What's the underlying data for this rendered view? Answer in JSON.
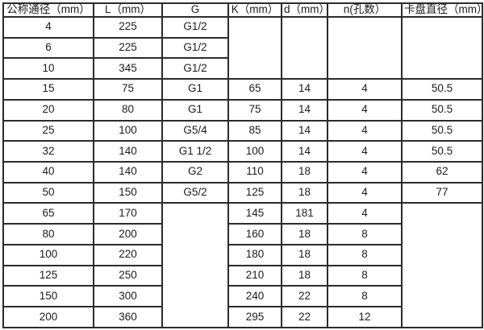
{
  "style": {
    "background_color": "#ffffff",
    "border_color": "#2b2b2b",
    "text_color": "#1c1c1c"
  },
  "table": {
    "headers": [
      "公称通径（mm）",
      "L（mm）",
      "G",
      "K（mm）",
      "d（mm）",
      "n(孔数）",
      "卡盘直径（mm）"
    ],
    "header_names": [
      "nominal-diameter",
      "length-l",
      "thread-g",
      "k-dimension",
      "d-dimension",
      "hole-count-n",
      "chuck-diameter"
    ],
    "rows": [
      [
        {
          "v": "4"
        },
        {
          "v": "225"
        },
        {
          "v": "G1/2"
        },
        {
          "v": "",
          "rowspan": 3
        },
        {
          "v": "",
          "rowspan": 3
        },
        {
          "v": "",
          "rowspan": 3
        },
        {
          "v": "",
          "rowspan": 3
        }
      ],
      [
        {
          "v": "6"
        },
        {
          "v": "225"
        },
        {
          "v": "G1/2"
        }
      ],
      [
        {
          "v": "10"
        },
        {
          "v": "345"
        },
        {
          "v": "G1/2"
        }
      ],
      [
        {
          "v": "15"
        },
        {
          "v": "75"
        },
        {
          "v": "G1"
        },
        {
          "v": "65"
        },
        {
          "v": "14"
        },
        {
          "v": "4"
        },
        {
          "v": "50.5"
        }
      ],
      [
        {
          "v": "20"
        },
        {
          "v": "80"
        },
        {
          "v": "G1"
        },
        {
          "v": "75"
        },
        {
          "v": "14"
        },
        {
          "v": "4"
        },
        {
          "v": "50.5"
        }
      ],
      [
        {
          "v": "25"
        },
        {
          "v": "100"
        },
        {
          "v": "G5/4"
        },
        {
          "v": "85"
        },
        {
          "v": "14"
        },
        {
          "v": "4"
        },
        {
          "v": "50.5"
        }
      ],
      [
        {
          "v": "32"
        },
        {
          "v": "140"
        },
        {
          "v": "G1 1/2"
        },
        {
          "v": "100"
        },
        {
          "v": "14"
        },
        {
          "v": "4"
        },
        {
          "v": "50.5"
        }
      ],
      [
        {
          "v": "40"
        },
        {
          "v": "140"
        },
        {
          "v": "G2"
        },
        {
          "v": "110"
        },
        {
          "v": "18"
        },
        {
          "v": "4"
        },
        {
          "v": "62"
        }
      ],
      [
        {
          "v": "50"
        },
        {
          "v": "150"
        },
        {
          "v": "G5/2"
        },
        {
          "v": "125"
        },
        {
          "v": "18"
        },
        {
          "v": "4"
        },
        {
          "v": "77"
        }
      ],
      [
        {
          "v": "65"
        },
        {
          "v": "170"
        },
        {
          "v": "",
          "rowspan": 6
        },
        {
          "v": "145"
        },
        {
          "v": "181"
        },
        {
          "v": "4"
        },
        {
          "v": "",
          "rowspan": 6
        }
      ],
      [
        {
          "v": "80"
        },
        {
          "v": "200"
        },
        {
          "v": "160"
        },
        {
          "v": "18"
        },
        {
          "v": "8"
        }
      ],
      [
        {
          "v": "100"
        },
        {
          "v": "220"
        },
        {
          "v": "180"
        },
        {
          "v": "18"
        },
        {
          "v": "8"
        }
      ],
      [
        {
          "v": "125"
        },
        {
          "v": "250"
        },
        {
          "v": "210"
        },
        {
          "v": "18"
        },
        {
          "v": "8"
        }
      ],
      [
        {
          "v": "150"
        },
        {
          "v": "300"
        },
        {
          "v": "240"
        },
        {
          "v": "22"
        },
        {
          "v": "8"
        }
      ],
      [
        {
          "v": "200"
        },
        {
          "v": "360"
        },
        {
          "v": "295"
        },
        {
          "v": "22"
        },
        {
          "v": "12"
        }
      ]
    ]
  }
}
